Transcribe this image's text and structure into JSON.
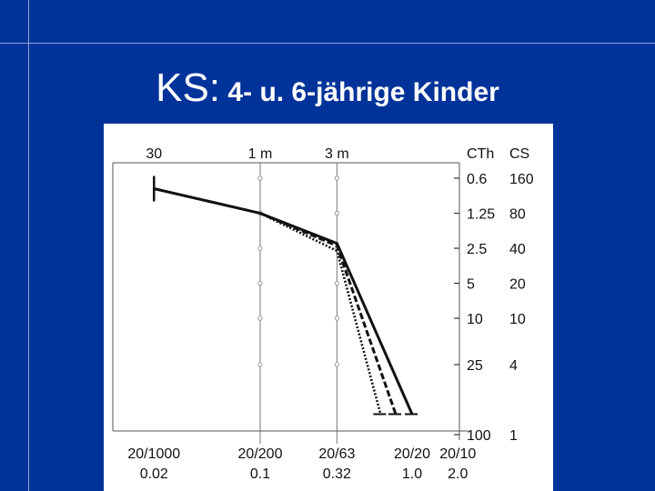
{
  "slide": {
    "title_lead": "KS:",
    "title_rest": " 4- u. 6-jährige Kinder",
    "background": "#003399",
    "text_color": "#ffffff"
  },
  "chart_data": {
    "type": "line",
    "top_axis_ticks": [
      "30",
      "1 m",
      "3 m"
    ],
    "right_header": [
      "CTh",
      "CS"
    ],
    "cth_ticks": [
      "0.6",
      "1.25",
      "2.5",
      "5",
      "10",
      "25",
      "100"
    ],
    "cs_ticks": [
      "160",
      "80",
      "40",
      "20",
      "10",
      "4",
      "1"
    ],
    "bottom_snellen": [
      "20/1000",
      "20/200",
      "20/63",
      "20/20",
      "20/10"
    ],
    "bottom_decimal": [
      "0.02",
      "0.1",
      "0.32",
      "1.0",
      "2.0"
    ],
    "decimal_values": [
      0.02,
      0.1,
      0.32,
      1.0,
      2.0
    ],
    "cs_values": [
      160,
      80,
      40,
      20,
      10,
      4,
      1
    ],
    "series": [
      {
        "style": "solid",
        "points": [
          [
            0.02,
            130
          ],
          [
            0.1,
            80
          ],
          [
            0.32,
            44
          ],
          [
            1.0,
            1.5
          ]
        ]
      },
      {
        "style": "dashed",
        "points": [
          [
            0.1,
            80
          ],
          [
            0.32,
            42
          ],
          [
            0.78,
            1.5
          ]
        ]
      },
      {
        "style": "dotted",
        "points": [
          [
            0.1,
            80
          ],
          [
            0.32,
            38
          ],
          [
            0.62,
            1.5
          ]
        ]
      }
    ]
  }
}
